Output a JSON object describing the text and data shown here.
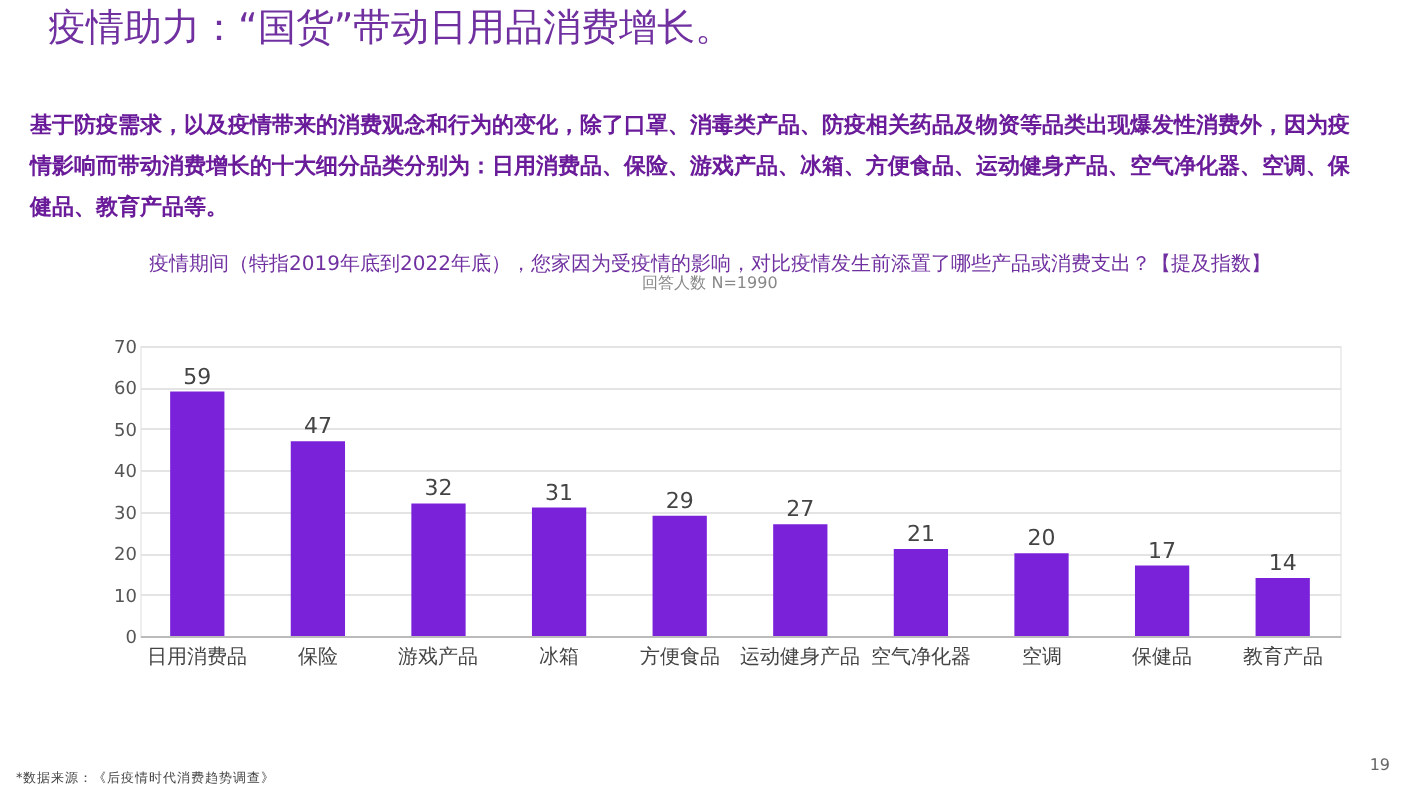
{
  "chart_data": {
    "type": "bar",
    "title": "疫情助力：“国货”带动日用品消费增长。",
    "subtitle": "基于防疫需求，以及疫情带来的消费观念和行为的变化，除了口罩、消毒类产品、防疫相关药品及物资等品类出现爆发性消费外，因为疫情影响而带动消费增长的十大细分品类分别为：日用消费品、保险、游戏产品、冰箱、方便食品、运动健身产品、空气净化器、空调、保健品、教育产品等。",
    "annotations": [
      "疫情期间（特指2019年底到2022年底），您家因为受疫情的影响，对比疫情发生前添置了哪些产品或消费支出？【提及指数】",
      "回答人数 N=1990",
      "*数据来源：《后疫情时代消费趋势调查》",
      "19"
    ],
    "categories": [
      "日用消费品",
      "保险",
      "游戏产品",
      "冰箱",
      "方便食品",
      "运动健身产品",
      "空气净化器",
      "空调",
      "保健品",
      "教育产品"
    ],
    "values": [
      59,
      47,
      32,
      31,
      29,
      27,
      21,
      20,
      17,
      14
    ],
    "color": "#7a22d9",
    "ylim": [
      0,
      70
    ],
    "yticks": [
      0,
      10,
      20,
      30,
      40,
      50,
      60,
      70
    ],
    "grid": "y",
    "data_labels": true
  }
}
